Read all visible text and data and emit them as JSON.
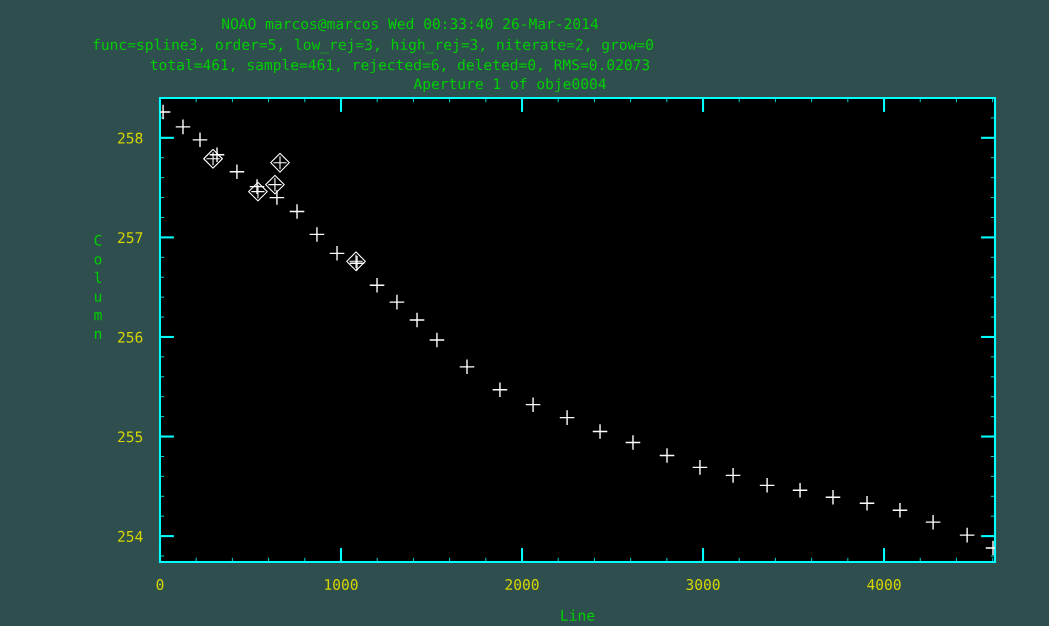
{
  "chart_data": {
    "type": "scatter",
    "title": "NOAO marcos@marcos Wed 00:33:40 26-Mar-2014",
    "subtitle": "func=spline3, order=5, low_rej=3, high_rej=3, niterate=2, grow=0",
    "annotations": [
      "total=461, sample=461, rejected=6, deleted=0, RMS=0.02073",
      "Aperture 1 of obje0004"
    ],
    "xlabel": "Line",
    "ylabel": "Column",
    "xlim": [
      0,
      4613
    ],
    "ylim": [
      253.74,
      258.4
    ],
    "xticks": [
      0,
      1000,
      2000,
      3000,
      4000
    ],
    "yticks": [
      254,
      255,
      256,
      257,
      258
    ],
    "grid": false,
    "legend": false,
    "series": [
      {
        "color": "#ffffff",
        "marker": "cross",
        "x": [
          17,
          127,
          221,
          315,
          425,
          536,
          646,
          757,
          867,
          978,
          1088,
          1199,
          1309,
          1420,
          1530,
          1696,
          1878,
          2061,
          2249,
          2431,
          2613,
          2801,
          2983,
          3166,
          3354,
          3536,
          3718,
          3906,
          4088,
          4271,
          4459,
          4602
        ],
        "values": [
          258.26,
          258.11,
          257.98,
          257.83,
          257.66,
          257.51,
          257.4,
          257.26,
          257.03,
          256.84,
          256.74,
          256.52,
          256.35,
          256.17,
          255.97,
          255.7,
          255.47,
          255.32,
          255.19,
          255.05,
          254.94,
          254.81,
          254.69,
          254.61,
          254.51,
          254.46,
          254.39,
          254.33,
          254.26,
          254.14,
          254.01,
          253.88
        ]
      },
      {
        "color": "#ffffff",
        "marker": "diamond",
        "x": [
          293,
          663,
          635,
          541,
          1083
        ],
        "values": [
          257.79,
          257.75,
          257.53,
          257.46,
          256.76
        ]
      }
    ]
  }
}
